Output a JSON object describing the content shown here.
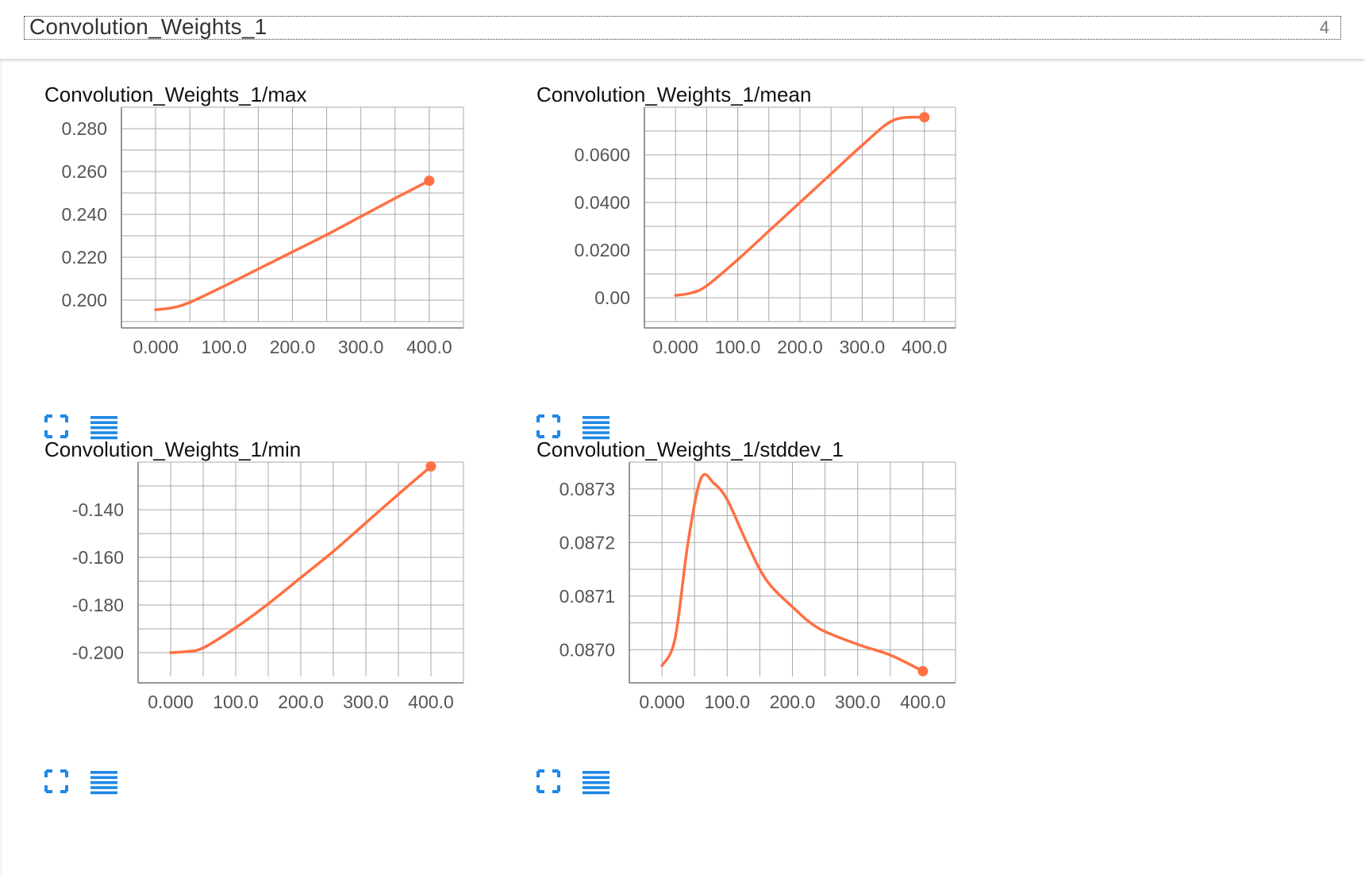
{
  "header": {
    "title": "Convolution_Weights_1",
    "count": "4"
  },
  "colors": {
    "series": "#ff7043",
    "grid": "#a8a8a8",
    "icon": "#1e88e5"
  },
  "icons": {
    "expand": "fullscreen-icon",
    "data": "list-icon"
  },
  "charts": [
    {
      "title": "Convolution_Weights_1/max",
      "chart_data": {
        "type": "line",
        "title": "Convolution_Weights_1/max",
        "x": [
          0,
          25,
          50,
          100,
          150,
          200,
          250,
          300,
          350,
          400
        ],
        "values": [
          0.1955,
          0.1965,
          0.199,
          0.2065,
          0.2145,
          0.2225,
          0.2305,
          0.239,
          0.2475,
          0.2557
        ],
        "x_ticks": [
          "0.000",
          "100.0",
          "200.0",
          "300.0",
          "400.0"
        ],
        "y_ticks": [
          "0.200",
          "0.220",
          "0.240",
          "0.260",
          "0.280"
        ],
        "xlim": [
          -50,
          450
        ],
        "ylim": [
          0.19,
          0.29
        ],
        "grid": true
      }
    },
    {
      "title": "Convolution_Weights_1/mean",
      "chart_data": {
        "type": "line",
        "title": "Convolution_Weights_1/mean",
        "x": [
          0,
          25,
          50,
          100,
          150,
          200,
          250,
          300,
          350,
          400
        ],
        "values": [
          0.001,
          0.002,
          0.005,
          0.016,
          0.028,
          0.04,
          0.052,
          0.064,
          0.0745,
          0.0758
        ],
        "x_ticks": [
          "0.000",
          "100.0",
          "200.0",
          "300.0",
          "400.0"
        ],
        "y_ticks": [
          "0.00",
          "0.0200",
          "0.0400",
          "0.0600"
        ],
        "xlim": [
          -50,
          450
        ],
        "ylim": [
          -0.01,
          0.08
        ],
        "grid": true
      }
    },
    {
      "title": "Convolution_Weights_1/min",
      "chart_data": {
        "type": "line",
        "title": "Convolution_Weights_1/min",
        "x": [
          0,
          25,
          50,
          100,
          150,
          200,
          250,
          300,
          350,
          400
        ],
        "values": [
          -0.2,
          -0.1995,
          -0.198,
          -0.1895,
          -0.1795,
          -0.1685,
          -0.1575,
          -0.1455,
          -0.1335,
          -0.1218
        ],
        "x_ticks": [
          "0.000",
          "100.0",
          "200.0",
          "300.0",
          "400.0"
        ],
        "y_ticks": [
          "-0.200",
          "-0.180",
          "-0.160",
          "-0.140"
        ],
        "xlim": [
          -50,
          450
        ],
        "ylim": [
          -0.21,
          -0.12
        ],
        "grid": true
      }
    },
    {
      "title": "Convolution_Weights_1/stddev_1",
      "chart_data": {
        "type": "line",
        "title": "Convolution_Weights_1/stddev_1",
        "x": [
          0,
          20,
          40,
          60,
          80,
          100,
          130,
          160,
          200,
          240,
          300,
          350,
          400
        ],
        "values": [
          0.08697,
          0.08702,
          0.0872,
          0.08732,
          0.08731,
          0.08728,
          0.0872,
          0.08713,
          0.08708,
          0.08704,
          0.08701,
          0.08699,
          0.08696
        ],
        "x_ticks": [
          "0.000",
          "100.0",
          "200.0",
          "300.0",
          "400.0"
        ],
        "y_ticks": [
          "0.0870",
          "0.0871",
          "0.0872",
          "0.0873"
        ],
        "xlim": [
          -50,
          450
        ],
        "ylim": [
          0.08695,
          0.08735
        ],
        "grid": true
      }
    }
  ]
}
